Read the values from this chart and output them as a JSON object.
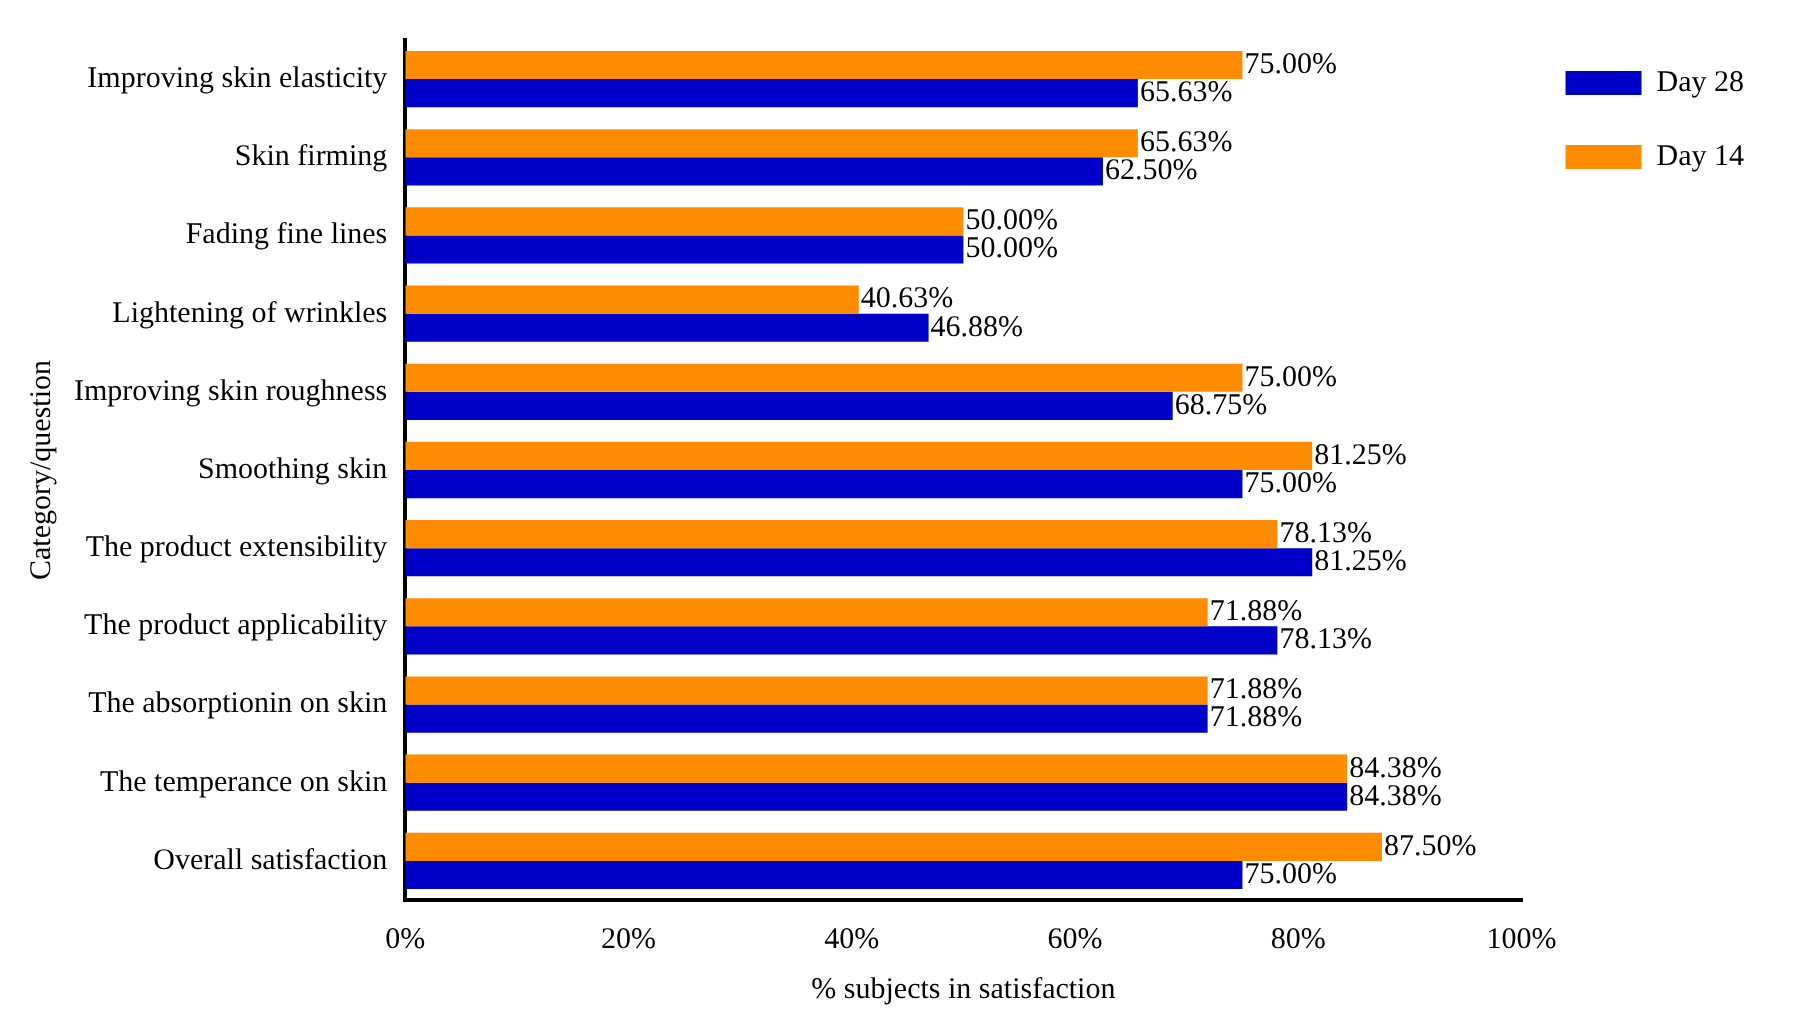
{
  "chart_data": {
    "type": "bar",
    "orientation": "horizontal",
    "xlabel": "% subjects in satisfaction",
    "ylabel": "Category/question",
    "categories": [
      "Improving skin elasticity",
      "Skin firming",
      "Fading fine lines",
      "Lightening of wrinkles",
      "Improving skin roughness",
      "Smoothing skin",
      "The product extensibility",
      "The product applicability",
      "The absorptionin on skin",
      "The temperance on skin",
      "Overall satisfaction"
    ],
    "series": [
      {
        "name": "Day 14",
        "color": "#ff8c00",
        "values": [
          75.0,
          65.63,
          50.0,
          40.63,
          75.0,
          81.25,
          78.13,
          71.88,
          71.88,
          84.38,
          87.5
        ],
        "value_labels": [
          "75.00%",
          "65.63%",
          "50.00%",
          "40.63%",
          "75.00%",
          "81.25%",
          "78.13%",
          "71.88%",
          "71.88%",
          "84.38%",
          "87.50%"
        ]
      },
      {
        "name": "Day 28",
        "color": "#0000c8",
        "values": [
          65.63,
          62.5,
          50.0,
          46.88,
          68.75,
          75.0,
          81.25,
          78.13,
          71.88,
          84.38,
          75.0
        ],
        "value_labels": [
          "65.63%",
          "62.50%",
          "50.00%",
          "46.88%",
          "68.75%",
          "75.00%",
          "81.25%",
          "78.13%",
          "71.88%",
          "84.38%",
          "75.00%"
        ]
      }
    ],
    "xlim": [
      0,
      100
    ],
    "xticks": [
      {
        "value": 0,
        "label": "0%"
      },
      {
        "value": 20,
        "label": "20%"
      },
      {
        "value": 40,
        "label": "40%"
      },
      {
        "value": 60,
        "label": "60%"
      },
      {
        "value": 80,
        "label": "80%"
      },
      {
        "value": 100,
        "label": "100%"
      }
    ],
    "grid": false,
    "legend": "top right"
  }
}
